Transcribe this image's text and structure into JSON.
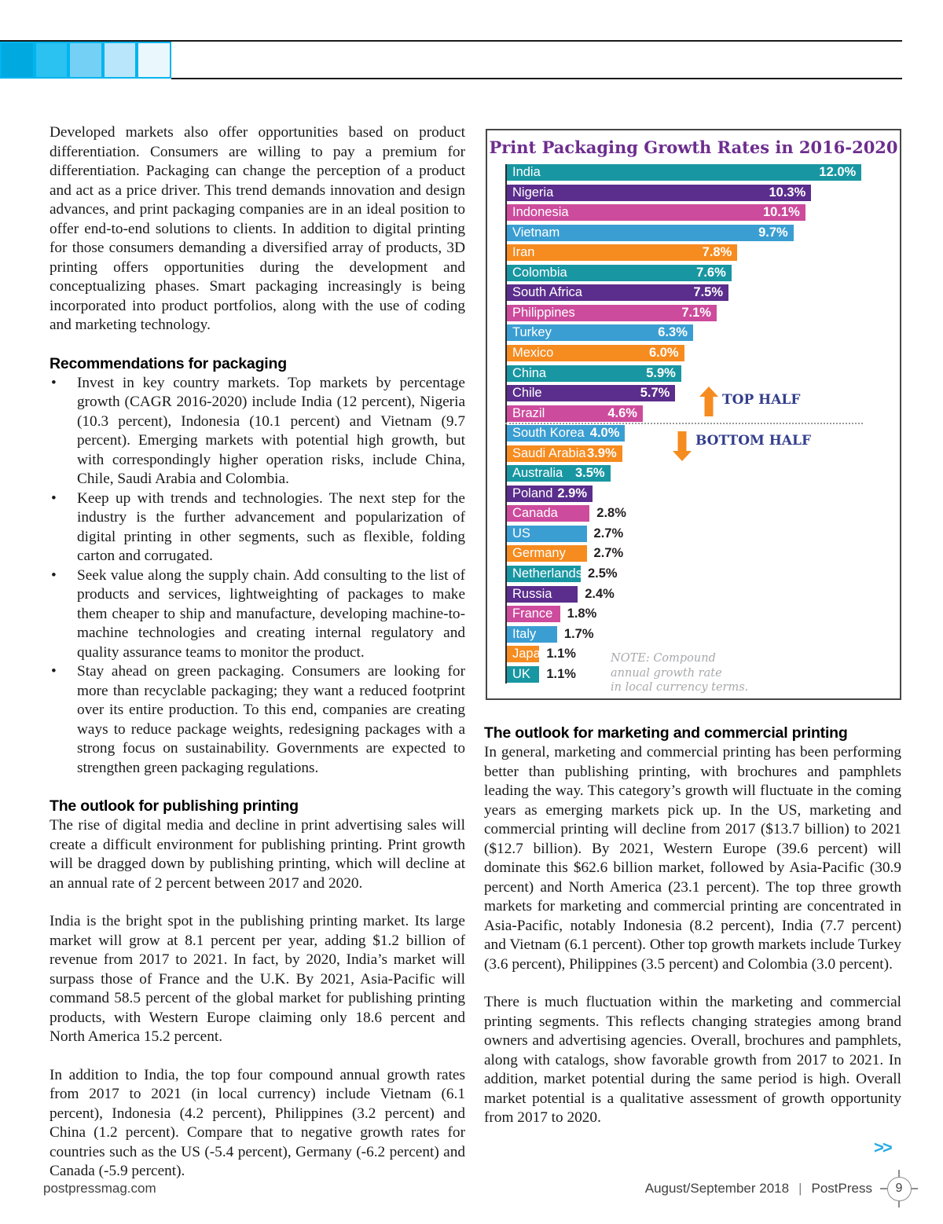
{
  "header": {
    "gradient_colors": [
      "#00a9e0",
      "#2bc1f0",
      "#74d0f4",
      "#b9e6fa",
      "#eaf8fe"
    ],
    "border_color": "#00b4ef"
  },
  "left_column": {
    "intro": "Developed markets also offer opportunities based on product differentiation. Consumers are willing to pay a premium for differentiation. Packaging can change the perception of a product and act as a price driver. This trend demands innovation and design advances, and print packaging companies are in an ideal position to offer end-to-end solutions to clients. In addition to digital printing for those consumers demanding a diversified array of products, 3D printing offers opportunities during the development and conceptualizing phases. Smart packaging increasingly is being incorporated into product portfolios, along with the use of coding and marketing technology.",
    "recommendations_heading": "Recommendations for packaging",
    "bullets": [
      "Invest in key country markets. Top markets by percentage growth (CAGR 2016-2020) include India (12 percent), Nigeria (10.3 percent), Indonesia (10.1 percent) and Vietnam (9.7 percent). Emerging markets with potential high growth, but with correspondingly higher operation risks, include China, Chile, Saudi Arabia and Colombia.",
      "Keep up with trends and technologies. The next step for the industry is the further advancement and popularization of digital printing in other segments, such as flexible, folding carton and corrugated.",
      "Seek value along the supply chain. Add consulting to the list of products and services, lightweighting of packages to make them cheaper to ship and manufacture, developing machine-to-machine technologies and creating internal regulatory and quality assurance teams to monitor the product.",
      "Stay ahead on green packaging. Consumers are looking for more than recyclable packaging; they want a reduced footprint over its entire production. To this end, companies are creating ways to reduce package weights, redesigning packages with a strong focus on sustainability. Governments are expected to strengthen green packaging regulations."
    ],
    "publishing_heading": "The outlook for publishing printing",
    "publishing_paras": [
      "The rise of digital media and decline in print advertising sales will create a difficult environment for publishing printing. Print growth will be dragged down by publishing printing, which will decline at an annual rate of 2 percent between 2017 and 2020.",
      "India is the bright spot in the publishing printing market. Its large market will grow at 8.1 percent per year, adding $1.2 billion of revenue from 2017 to 2021. In fact, by 2020, India’s market will surpass those of France and the U.K. By 2021, Asia-Pacific will command 58.5 percent of the global market for publishing printing products, with Western Europe claiming only 18.6 percent and North America 15.2 percent.",
      "In addition to India, the top four compound annual growth rates from 2017 to 2021 (in local currency) include Vietnam (6.1 percent), Indonesia (4.2 percent), Philippines (3.2 percent) and China (1.2 percent). Compare that to negative growth rates for countries such as the US (-5.4 percent), Germany (-6.2 percent) and Canada (-5.9 percent)."
    ]
  },
  "chart_data": {
    "type": "bar",
    "orientation": "horizontal",
    "title": "Print Packaging Growth Rates in 2016-2020",
    "categories": [
      "India",
      "Nigeria",
      "Indonesia",
      "Vietnam",
      "Iran",
      "Colombia",
      "South Africa",
      "Philippines",
      "Turkey",
      "Mexico",
      "China",
      "Chile",
      "Brazil",
      "South Korea",
      "Saudi Arabia",
      "Australia",
      "Poland",
      "Canada",
      "US",
      "Germany",
      "Netherlands",
      "Russia",
      "France",
      "Italy",
      "Japan",
      "UK"
    ],
    "values": [
      12.0,
      10.3,
      10.1,
      9.7,
      7.8,
      7.6,
      7.5,
      7.1,
      6.3,
      6.0,
      5.9,
      5.7,
      4.6,
      4.0,
      3.9,
      3.5,
      2.9,
      2.8,
      2.7,
      2.7,
      2.5,
      2.4,
      1.8,
      1.7,
      1.1,
      1.1
    ],
    "unit": "%",
    "bar_colors": [
      "#1897a2",
      "#5b2d8c",
      "#cd4b9c",
      "#3a9ed2",
      "#f68b1f"
    ],
    "value_label_inside_min": 2.9,
    "separator_after_index": 12,
    "annotations": {
      "top": "TOP HALF",
      "bottom": "BOTTOM HALF",
      "text_color": "#333e8c",
      "arrow_color": "#f68b1f"
    },
    "note": "NOTE: Compound\nannual growth rate\nin local currency terms.",
    "colors": {
      "title": "#6d2d8e",
      "note": "#a7a9ac"
    }
  },
  "right_column": {
    "marketing_heading": "The outlook for marketing and commercial printing",
    "paras": [
      "In general, marketing and commercial printing has been performing better than publishing printing, with brochures and pamphlets leading the way. This category’s growth will fluctuate in the coming years as emerging markets pick up. In the US, marketing and commercial printing will decline from 2017 ($13.7 billion) to 2021 ($12.7 billion). By 2021, Western Europe (39.6 percent) will dominate this $62.6 billion market, followed by Asia-Pacific (30.9 percent) and North America (23.1 percent). The top three growth markets for marketing and commercial printing are concentrated in Asia-Pacific, notably Indonesia (8.2 percent), India (7.7 percent) and Vietnam (6.1 percent). Other top growth markets include Turkey (3.6 percent), Philippines (3.5 percent) and Colombia (3.0 percent).",
      "There is much fluctuation within the marketing and commercial printing segments. This reflects changing strategies among brand owners and advertising agencies. Overall, brochures and pamphlets, along with catalogs, show favorable growth from 2017 to 2021. In addition, market potential during the same period is high. Overall market potential is a qualitative assessment of growth opportunity from 2017 to 2020."
    ],
    "continuation_symbol": ">>",
    "continuation_color": "#29abe2"
  },
  "footer": {
    "website": "postpressmag.com",
    "issue": "August/September 2018",
    "divider": "|",
    "magazine": "PostPress",
    "page_number": "9"
  }
}
